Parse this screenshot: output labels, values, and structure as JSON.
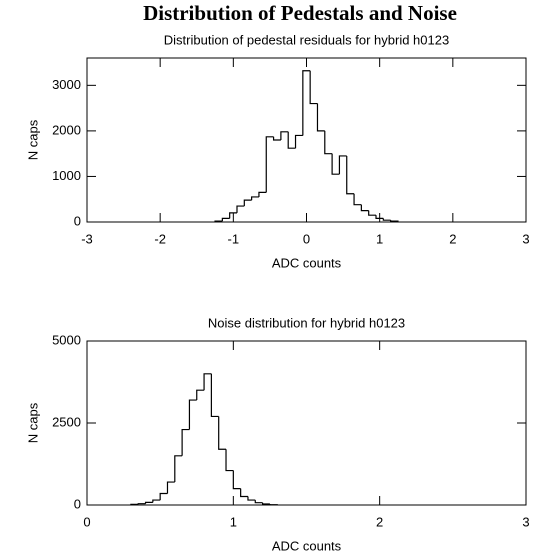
{
  "title": "Distribution of Pedestals and Noise",
  "chart_data": [
    {
      "type": "histogram",
      "title": "Distribution of pedestal residuals for hybrid h0123",
      "x_label": "ADC counts",
      "y_label": "N caps",
      "bins": [
        -1.25,
        -1.15,
        -1.05,
        -0.95,
        -0.85,
        -0.75,
        -0.65,
        -0.55,
        -0.45,
        -0.35,
        -0.25,
        -0.15,
        -0.05,
        0.05,
        0.15,
        0.25,
        0.35,
        0.45,
        0.55,
        0.65,
        0.75,
        0.85,
        0.95,
        1.05,
        1.15,
        1.25
      ],
      "values": [
        20,
        80,
        200,
        350,
        480,
        550,
        650,
        1870,
        1800,
        1980,
        1620,
        1900,
        3320,
        2600,
        2000,
        1500,
        1050,
        1450,
        620,
        380,
        250,
        150,
        80,
        40,
        20
      ],
      "color": "#000000",
      "xlim": [
        -3,
        3
      ],
      "xticks": [
        -3,
        -2,
        -1,
        0,
        1,
        2,
        3
      ],
      "ylim": [
        0,
        3600
      ],
      "yticks": [
        0,
        1000,
        2000,
        3000
      ]
    },
    {
      "type": "histogram",
      "title": "Noise distribution for hybrid h0123",
      "x_label": "ADC counts",
      "y_label": "N caps",
      "bins": [
        0.3,
        0.35,
        0.4,
        0.45,
        0.5,
        0.55,
        0.6,
        0.65,
        0.7,
        0.75,
        0.8,
        0.85,
        0.9,
        0.95,
        1.0,
        1.05,
        1.1,
        1.15,
        1.2,
        1.25,
        1.3
      ],
      "values": [
        20,
        40,
        80,
        150,
        350,
        700,
        1500,
        2300,
        3200,
        3500,
        4000,
        2700,
        1700,
        1050,
        500,
        260,
        150,
        70,
        30,
        10
      ],
      "color": "#000000",
      "xlim": [
        0,
        3
      ],
      "xticks": [
        0,
        1,
        2,
        3
      ],
      "ylim": [
        0,
        5000
      ],
      "yticks": [
        0,
        2500,
        5000
      ]
    }
  ]
}
